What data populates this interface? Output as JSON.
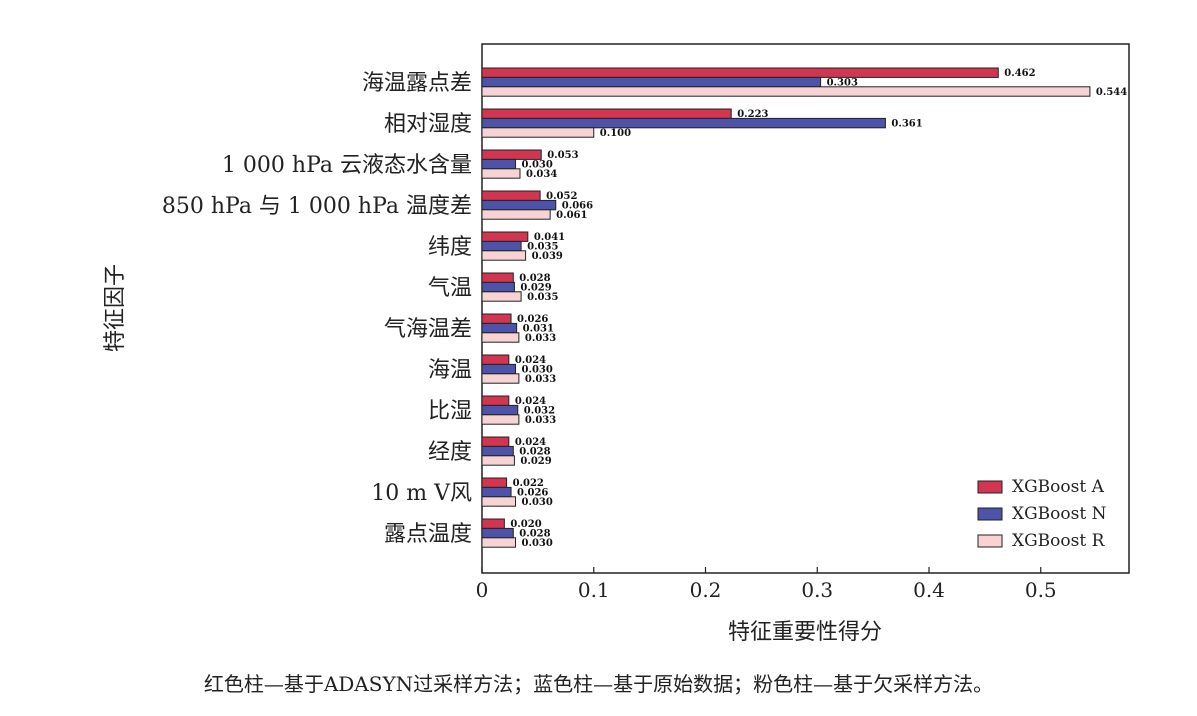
{
  "chart_data": {
    "type": "bar",
    "orientation": "horizontal",
    "xlabel": "特征重要性得分",
    "ylabel": "特征因子",
    "xlim": [
      0,
      0.575
    ],
    "xticks": [
      "0",
      "0.1",
      "0.2",
      "0.3",
      "0.4",
      "0.5"
    ],
    "grid": false,
    "legend_position": "bottom-right",
    "categories": [
      "海温露点差",
      "相对湿度",
      "1 000 hPa 云液态水含量",
      "850 hPa 与 1 000 hPa 温度差",
      "纬度",
      "气温",
      "气海温差",
      "海温",
      "比湿",
      "经度",
      "10 m V风",
      "露点温度"
    ],
    "series": [
      {
        "name": "XGBoost A",
        "color": "#d1354f",
        "values": [
          0.462,
          0.223,
          0.053,
          0.052,
          0.041,
          0.028,
          0.026,
          0.024,
          0.024,
          0.024,
          0.022,
          0.02
        ],
        "labels": [
          "0.462",
          "0.223",
          "0.053",
          "0.052",
          "0.041",
          "0.028",
          "0.026",
          "0.024",
          "0.024",
          "0.024",
          "0.022",
          "0.020"
        ]
      },
      {
        "name": "XGBoost N",
        "color": "#4c53a8",
        "values": [
          0.303,
          0.361,
          0.03,
          0.066,
          0.035,
          0.029,
          0.031,
          0.03,
          0.032,
          0.028,
          0.026,
          0.028
        ],
        "labels": [
          "0.303",
          "0.361",
          "0.030",
          "0.066",
          "0.035",
          "0.029",
          "0.031",
          "0.030",
          "0.032",
          "0.028",
          "0.026",
          "0.028"
        ]
      },
      {
        "name": "XGBoost R",
        "color": "#f7d3d3",
        "values": [
          0.544,
          0.1,
          0.034,
          0.061,
          0.039,
          0.035,
          0.033,
          0.033,
          0.033,
          0.029,
          0.03,
          0.03
        ],
        "labels": [
          "0.544",
          "0.100",
          "0.034",
          "0.061",
          "0.039",
          "0.035",
          "0.033",
          "0.033",
          "0.033",
          "0.029",
          "0.030",
          "0.030"
        ]
      }
    ]
  },
  "caption": "红色柱—基于ADASYN过采样方法；蓝色柱—基于原始数据；粉色柱—基于欠采样方法。"
}
